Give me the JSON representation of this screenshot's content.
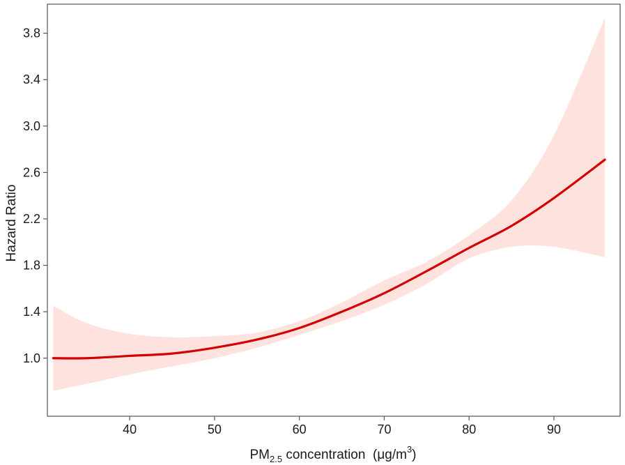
{
  "chart_data": {
    "type": "line",
    "xlabel": {
      "prefix": "PM",
      "subscript": "2.5",
      "middle": " concentration  (μg/m",
      "superscript": "3",
      "suffix": ")"
    },
    "ylabel": "Hazard Ratio",
    "xlim": [
      30.3,
      97.8
    ],
    "ylim": [
      0.5,
      4.05
    ],
    "x_ticks": [
      40,
      50,
      60,
      70,
      80,
      90
    ],
    "x_tick_labels": [
      "40",
      "50",
      "60",
      "70",
      "80",
      "90"
    ],
    "y_ticks": [
      1.0,
      1.4,
      1.8,
      2.2,
      2.6,
      3.0,
      3.4,
      3.8
    ],
    "y_tick_labels": [
      "1.0",
      "1.4",
      "1.8",
      "2.2",
      "2.6",
      "3.0",
      "3.4",
      "3.8"
    ],
    "grid": false,
    "series": [
      {
        "x": [
          31.0,
          35.0,
          40.0,
          45.0,
          50.0,
          55.0,
          60.0,
          65.0,
          70.0,
          75.0,
          80.0,
          85.0,
          90.0,
          96.0
        ],
        "y": [
          1.0,
          1.0,
          1.02,
          1.04,
          1.09,
          1.16,
          1.26,
          1.4,
          1.56,
          1.75,
          1.95,
          2.14,
          2.38,
          2.71
        ],
        "lower": [
          0.72,
          0.78,
          0.86,
          0.93,
          1.0,
          1.09,
          1.2,
          1.32,
          1.46,
          1.64,
          1.86,
          1.96,
          1.96,
          1.87
        ],
        "upper": [
          1.45,
          1.3,
          1.21,
          1.18,
          1.19,
          1.22,
          1.32,
          1.48,
          1.67,
          1.83,
          2.06,
          2.36,
          2.92,
          3.93
        ]
      }
    ],
    "colors": {
      "line": "#d40000",
      "band": "#fde2de",
      "frame": "#555555",
      "text": "#1a1a1a"
    }
  }
}
